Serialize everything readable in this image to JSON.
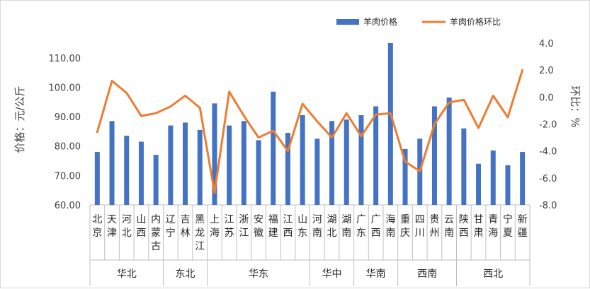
{
  "chart_data": {
    "type": "bar+line",
    "legend": [
      "羊肉价格",
      "羊肉价格环比"
    ],
    "colors": {
      "bar": "#4472C4",
      "line": "#ED7D31"
    },
    "left_axis": {
      "label": "价格：元/公斤",
      "min": 60,
      "max": 115,
      "ticks": [
        "60.00",
        "70.00",
        "80.00",
        "90.00",
        "100.00",
        "110.00"
      ]
    },
    "right_axis": {
      "label": "环比：%",
      "min": -8,
      "max": 4,
      "ticks": [
        "-8.0",
        "-6.0",
        "-4.0",
        "-2.0",
        "0.0",
        "2.0",
        "4.0"
      ]
    },
    "categories": [
      "北京",
      "天津",
      "河北",
      "山西",
      "内蒙古",
      "辽宁",
      "吉林",
      "黑龙江",
      "上海",
      "江苏",
      "浙江",
      "安徽",
      "福建",
      "江西",
      "山东",
      "河南",
      "湖北",
      "湖南",
      "广东",
      "广西",
      "海南",
      "重庆",
      "四川",
      "贵州",
      "云南",
      "陕西",
      "甘肃",
      "青海",
      "宁夏",
      "新疆"
    ],
    "price": [
      78.0,
      88.5,
      83.5,
      81.5,
      77.0,
      87.0,
      88.0,
      85.5,
      94.5,
      87.0,
      88.5,
      82.0,
      98.5,
      84.5,
      90.5,
      82.5,
      88.5,
      89.0,
      90.5,
      93.5,
      115.0,
      79.0,
      82.5,
      93.5,
      96.5,
      86.0,
      74.0,
      78.5,
      73.5,
      78.0
    ],
    "mom": [
      -2.6,
      1.2,
      0.3,
      -1.4,
      -1.2,
      -0.7,
      0.1,
      -0.8,
      -7.1,
      0.4,
      -1.4,
      -3.0,
      -2.5,
      -4.0,
      -0.5,
      -1.8,
      -3.0,
      -1.2,
      -2.9,
      -1.3,
      -1.2,
      -4.8,
      -5.5,
      -2.0,
      -0.4,
      -0.2,
      -2.3,
      0.1,
      -1.5,
      2.0
    ],
    "regions": [
      {
        "name": "华北",
        "span": 5
      },
      {
        "name": "东北",
        "span": 3
      },
      {
        "name": "华东",
        "span": 7
      },
      {
        "name": "华中",
        "span": 3
      },
      {
        "name": "华南",
        "span": 3
      },
      {
        "name": "西南",
        "span": 4
      },
      {
        "name": "西北",
        "span": 5
      }
    ]
  }
}
